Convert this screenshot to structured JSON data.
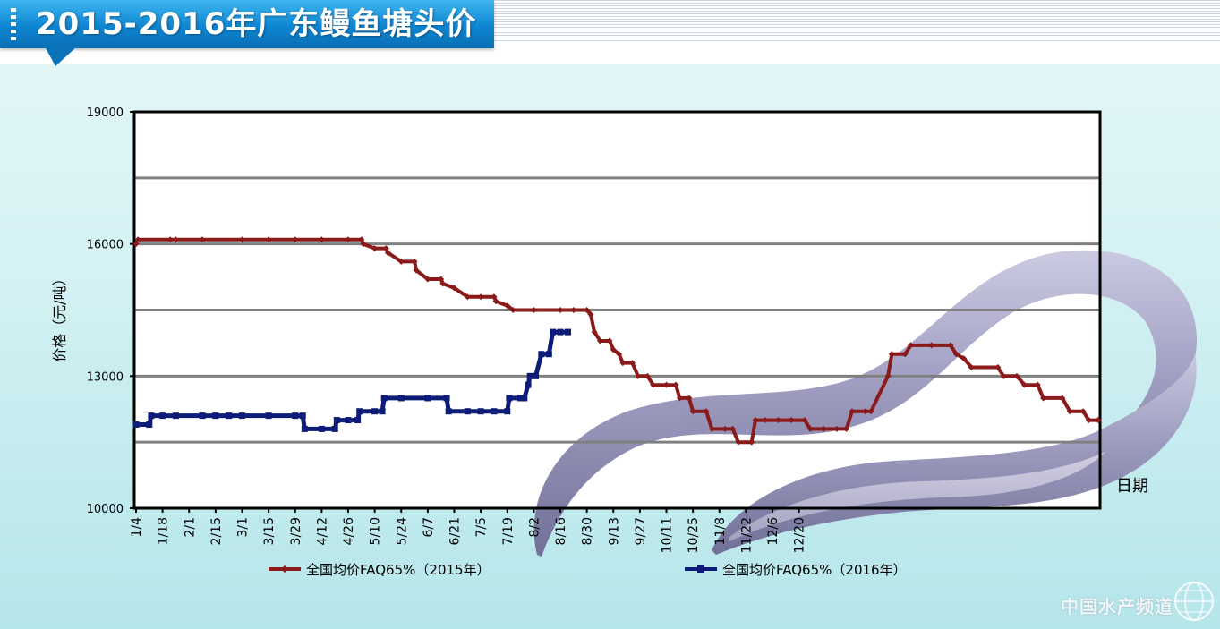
{
  "page_title": "2015-2016年广东鳗鱼塘头价",
  "watermark": "中国水产频道",
  "chart_data": {
    "type": "line",
    "title": "",
    "ylabel": "价格（元/吨）",
    "xlabel": "日期",
    "ylim": [
      10000,
      19000
    ],
    "yticks": [
      10000,
      13000,
      16000,
      19000
    ],
    "gridlines": [
      11500,
      13000,
      14500,
      16000,
      17500
    ],
    "grid": true,
    "legend_position": "bottom",
    "x_tick_labels": [
      "1/4",
      "1/18",
      "2/1",
      "2/15",
      "3/1",
      "3/15",
      "3/29",
      "4/12",
      "4/26",
      "5/10",
      "5/24",
      "6/7",
      "6/21",
      "7/5",
      "7/19",
      "8/2",
      "8/16",
      "8/30",
      "9/13",
      "9/27",
      "10/11",
      "10/25",
      "11/8",
      "11/22",
      "12/6",
      "12/20"
    ],
    "series": [
      {
        "name": "全国均价FAQ65%（2015年）",
        "color": "#8b1a1a",
        "points": [
          [
            0,
            16000
          ],
          [
            1,
            16100
          ],
          [
            18,
            16100
          ],
          [
            21,
            16100
          ],
          [
            35,
            16100
          ],
          [
            56,
            16100
          ],
          [
            70,
            16100
          ],
          [
            84,
            16100
          ],
          [
            98,
            16100
          ],
          [
            112,
            16100
          ],
          [
            119,
            16100
          ],
          [
            120,
            16000
          ],
          [
            126,
            15900
          ],
          [
            132,
            15900
          ],
          [
            133,
            15800
          ],
          [
            140,
            15600
          ],
          [
            147,
            15600
          ],
          [
            148,
            15400
          ],
          [
            154,
            15200
          ],
          [
            161,
            15200
          ],
          [
            162,
            15100
          ],
          [
            168,
            15000
          ],
          [
            175,
            14800
          ],
          [
            182,
            14800
          ],
          [
            189,
            14800
          ],
          [
            190,
            14700
          ],
          [
            196,
            14600
          ],
          [
            199,
            14500
          ],
          [
            210,
            14500
          ],
          [
            224,
            14500
          ],
          [
            231,
            14500
          ],
          [
            238,
            14500
          ],
          [
            240,
            14400
          ],
          [
            242,
            14000
          ],
          [
            245,
            13800
          ],
          [
            250,
            13800
          ],
          [
            252,
            13600
          ],
          [
            255,
            13500
          ],
          [
            257,
            13300
          ],
          [
            262,
            13300
          ],
          [
            265,
            13000
          ],
          [
            270,
            13000
          ],
          [
            273,
            12800
          ],
          [
            280,
            12800
          ],
          [
            285,
            12800
          ],
          [
            287,
            12500
          ],
          [
            292,
            12500
          ],
          [
            294,
            12200
          ],
          [
            301,
            12200
          ],
          [
            304,
            11800
          ],
          [
            311,
            11800
          ],
          [
            315,
            11800
          ],
          [
            318,
            11500
          ],
          [
            325,
            11500
          ],
          [
            327,
            12000
          ],
          [
            332,
            12000
          ],
          [
            339,
            12000
          ],
          [
            346,
            12000
          ],
          [
            353,
            12000
          ],
          [
            356,
            11800
          ],
          [
            363,
            11800
          ],
          [
            370,
            11800
          ],
          [
            375,
            11800
          ],
          [
            378,
            12200
          ],
          [
            385,
            12200
          ],
          [
            388,
            12200
          ],
          [
            397,
            13000
          ],
          [
            399,
            13500
          ],
          [
            406,
            13500
          ],
          [
            409,
            13700
          ],
          [
            420,
            13700
          ],
          [
            430,
            13700
          ],
          [
            433,
            13500
          ],
          [
            437,
            13400
          ],
          [
            441,
            13200
          ],
          [
            455,
            13200
          ],
          [
            458,
            13000
          ],
          [
            465,
            13000
          ],
          [
            469,
            12800
          ],
          [
            476,
            12800
          ],
          [
            479,
            12500
          ],
          [
            489,
            12500
          ],
          [
            493,
            12200
          ],
          [
            500,
            12200
          ],
          [
            503,
            12000
          ],
          [
            508,
            12000
          ]
        ]
      },
      {
        "name": "全国均价FAQ65%（2016年）",
        "color": "#0d1c78",
        "points": [
          [
            0,
            11900
          ],
          [
            7,
            11900
          ],
          [
            8,
            12100
          ],
          [
            14,
            12100
          ],
          [
            21,
            12100
          ],
          [
            35,
            12100
          ],
          [
            42,
            12100
          ],
          [
            49,
            12100
          ],
          [
            56,
            12100
          ],
          [
            70,
            12100
          ],
          [
            84,
            12100
          ],
          [
            88,
            12100
          ],
          [
            89,
            11800
          ],
          [
            98,
            11800
          ],
          [
            105,
            11800
          ],
          [
            106,
            12000
          ],
          [
            112,
            12000
          ],
          [
            117,
            12000
          ],
          [
            118,
            12200
          ],
          [
            126,
            12200
          ],
          [
            130,
            12200
          ],
          [
            131,
            12500
          ],
          [
            140,
            12500
          ],
          [
            154,
            12500
          ],
          [
            164,
            12500
          ],
          [
            165,
            12200
          ],
          [
            175,
            12200
          ],
          [
            182,
            12200
          ],
          [
            189,
            12200
          ],
          [
            196,
            12200
          ],
          [
            197,
            12500
          ],
          [
            203,
            12500
          ],
          [
            205,
            12500
          ],
          [
            207,
            12800
          ],
          [
            208,
            13000
          ],
          [
            211,
            13000
          ],
          [
            214,
            13500
          ],
          [
            218,
            13500
          ],
          [
            220,
            14000
          ],
          [
            224,
            14000
          ],
          [
            228,
            14000
          ]
        ]
      }
    ]
  }
}
